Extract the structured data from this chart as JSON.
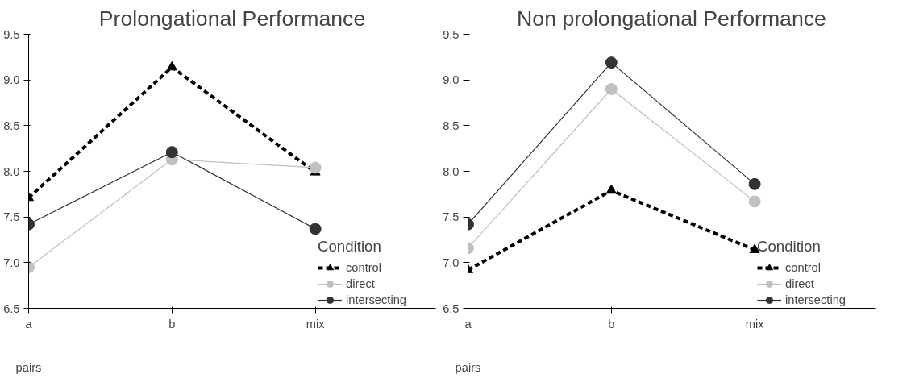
{
  "chart_data": [
    {
      "type": "line",
      "title": "Prolongational Performance",
      "xlabel": "pairs",
      "categories": [
        "a",
        "b",
        "mix"
      ],
      "ylim": [
        6.5,
        9.5
      ],
      "yticks": [
        6.5,
        {
          "value": 7,
          "label": "7.0"
        },
        7.5,
        {
          "value": 8,
          "label": "8.0"
        },
        8.5,
        {
          "value": 9,
          "label": "9.0"
        },
        9.5
      ],
      "legend": "right",
      "legend_title": "Condition",
      "grid": false,
      "series": [
        {
          "name": "control",
          "color": "#000000",
          "marker": "triangle",
          "line_style": "dashed",
          "values": [
            7.71,
            9.14,
            7.99
          ]
        },
        {
          "name": "direct",
          "color": "#c0c0c0",
          "marker": "circle",
          "line_style": "solid",
          "values": [
            6.95,
            8.13,
            8.04
          ]
        },
        {
          "name": "intersecting",
          "color": "#333333",
          "marker": "circle",
          "line_style": "solid",
          "values": [
            7.42,
            8.21,
            7.37
          ]
        }
      ]
    },
    {
      "type": "line",
      "title": "Non prolongational Performance",
      "xlabel": "pairs",
      "categories": [
        "a",
        "b",
        "mix"
      ],
      "ylim": [
        6.5,
        9.5
      ],
      "yticks": [
        6.5,
        {
          "value": 7,
          "label": "7.0"
        },
        7.5,
        {
          "value": 8,
          "label": "8.0"
        },
        8.5,
        {
          "value": 9,
          "label": "9.0"
        },
        9.5
      ],
      "legend": "right",
      "legend_title": "Condition",
      "grid": false,
      "series": [
        {
          "name": "control",
          "color": "#000000",
          "marker": "triangle",
          "line_style": "dashed",
          "values": [
            6.92,
            7.79,
            7.14
          ]
        },
        {
          "name": "direct",
          "color": "#c0c0c0",
          "marker": "circle",
          "line_style": "solid",
          "values": [
            7.16,
            8.9,
            7.67
          ]
        },
        {
          "name": "intersecting",
          "color": "#333333",
          "marker": "circle",
          "line_style": "solid",
          "values": [
            7.42,
            9.19,
            7.86
          ]
        }
      ]
    }
  ]
}
